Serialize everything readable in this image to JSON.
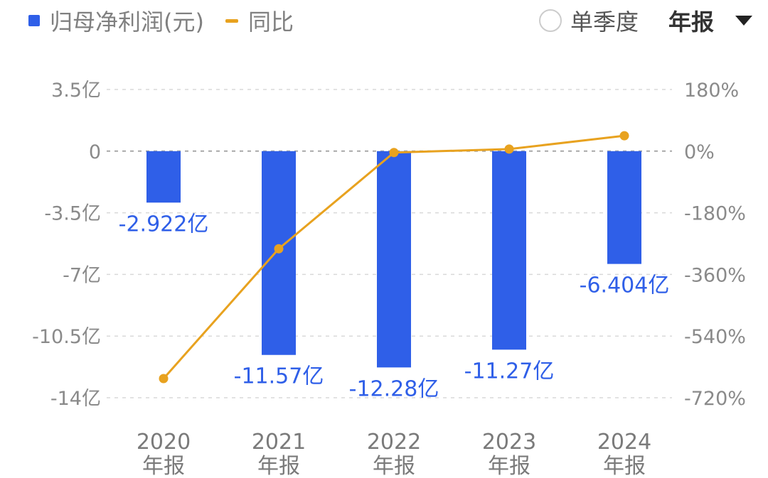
{
  "legend": {
    "bar_label": "归母净利润(元)",
    "line_label": "同比"
  },
  "controls": {
    "quarter_label": "单季度",
    "period_value": "年报"
  },
  "colors": {
    "bar": "#2f5fe8",
    "line": "#e8a21f",
    "grid": "#d9d9d9"
  },
  "chart_data": {
    "type": "bar",
    "categories": [
      "2020\n年报",
      "2021\n年报",
      "2022\n年报",
      "2023\n年报",
      "2024\n年报"
    ],
    "series": [
      {
        "name": "归母净利润(元)",
        "type": "bar",
        "axis": "left",
        "values": [
          -2.922,
          -11.57,
          -12.28,
          -11.27,
          -6.404
        ],
        "data_labels": [
          "-2.922亿",
          "-11.57亿",
          "-12.28亿",
          "-11.27亿",
          "-6.404亿"
        ]
      },
      {
        "name": "同比",
        "type": "line",
        "axis": "right",
        "values": [
          -664,
          -285,
          -4,
          6,
          45
        ]
      }
    ],
    "y_left": {
      "ticks": [
        3.5,
        0,
        -3.5,
        -7,
        -10.5,
        -14
      ],
      "tick_labels": [
        "3.5亿",
        "0",
        "-3.5亿",
        "-7亿",
        "-10.5亿",
        "-14亿"
      ],
      "range": [
        -14,
        3.5
      ]
    },
    "y_right": {
      "ticks": [
        180,
        0,
        -180,
        -360,
        -540,
        -720
      ],
      "tick_labels": [
        "180%",
        "0%",
        "-180%",
        "-360%",
        "-540%",
        "-720%"
      ],
      "range": [
        -720,
        180
      ]
    },
    "grid": true,
    "legend_position": "top-left"
  }
}
